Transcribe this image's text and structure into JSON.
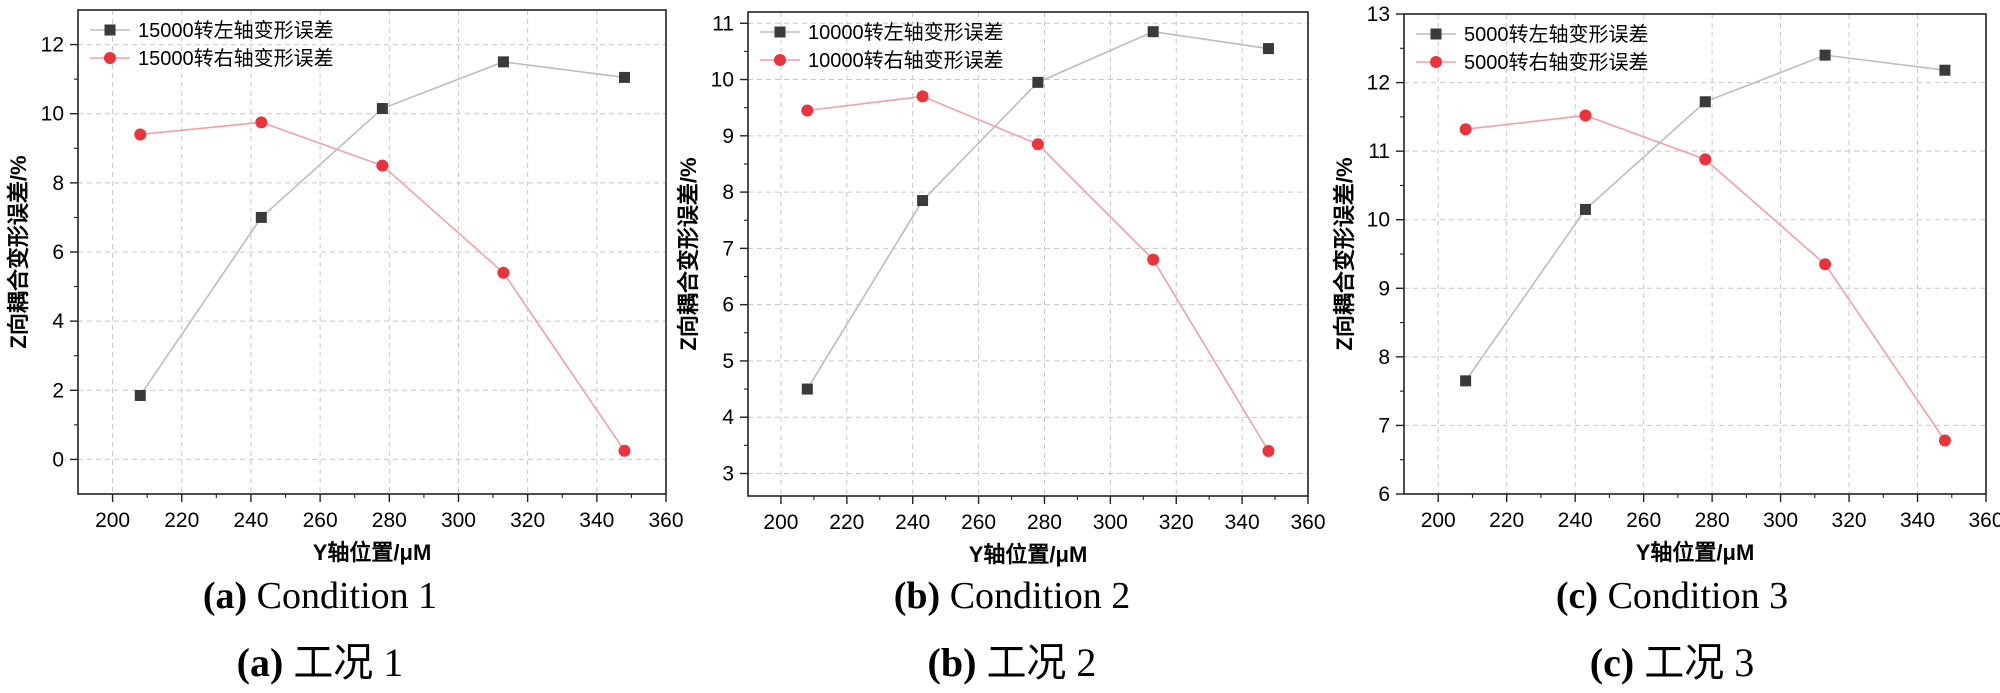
{
  "chart_data": [
    {
      "type": "line",
      "panel_letter": "(a)",
      "caption_en": "Condition 1",
      "caption_cn": "工况 1",
      "xlabel": "Y轴位置/μM",
      "ylabel": "Z向耦合变形误差/%",
      "xlim": [
        190,
        360
      ],
      "ylim": [
        -1,
        13
      ],
      "xticks": [
        200,
        220,
        240,
        260,
        280,
        300,
        320,
        340,
        360
      ],
      "yticks": [
        0,
        2,
        4,
        6,
        8,
        10,
        12
      ],
      "grid": true,
      "legend_position": "top-left",
      "series": [
        {
          "name": "15000转左轴变形误差",
          "marker": "square",
          "color": "#3a3a3a",
          "line_color": "#bdbdbd",
          "x": [
            208,
            243,
            278,
            313,
            348
          ],
          "y": [
            1.85,
            7.0,
            10.15,
            11.5,
            11.05
          ]
        },
        {
          "name": "15000转右轴变形误差",
          "marker": "circle",
          "color": "#e8343c",
          "line_color": "#f2a0a4",
          "x": [
            208,
            243,
            278,
            313,
            348
          ],
          "y": [
            9.4,
            9.75,
            8.5,
            5.4,
            0.25
          ]
        }
      ]
    },
    {
      "type": "line",
      "panel_letter": "(b)",
      "caption_en": "Condition 2",
      "caption_cn": "工况 2",
      "xlabel": "Y轴位置/μM",
      "ylabel": "Z向耦合变形误差/%",
      "xlim": [
        190,
        360
      ],
      "ylim": [
        2.6,
        11.2
      ],
      "xticks": [
        200,
        220,
        240,
        260,
        280,
        300,
        320,
        340,
        360
      ],
      "yticks": [
        3,
        4,
        5,
        6,
        7,
        8,
        9,
        10,
        11
      ],
      "grid": true,
      "legend_position": "top-left",
      "series": [
        {
          "name": "10000转左轴变形误差",
          "marker": "square",
          "color": "#3a3a3a",
          "line_color": "#bdbdbd",
          "x": [
            208,
            243,
            278,
            313,
            348
          ],
          "y": [
            4.5,
            7.85,
            9.95,
            10.85,
            10.55
          ]
        },
        {
          "name": "10000转右轴变形误差",
          "marker": "circle",
          "color": "#e8343c",
          "line_color": "#f2a0a4",
          "x": [
            208,
            243,
            278,
            313,
            348
          ],
          "y": [
            9.45,
            9.7,
            8.85,
            6.8,
            3.4
          ]
        }
      ]
    },
    {
      "type": "line",
      "panel_letter": "(c)",
      "caption_en": "Condition 3",
      "caption_cn": "工况 3",
      "xlabel": "Y轴位置/μM",
      "ylabel": "Z向耦合变形误差/%",
      "xlim": [
        190,
        360
      ],
      "ylim": [
        6,
        13
      ],
      "xticks": [
        200,
        220,
        240,
        260,
        280,
        300,
        320,
        340,
        360
      ],
      "yticks": [
        6,
        7,
        8,
        9,
        10,
        11,
        12,
        13
      ],
      "grid": true,
      "legend_position": "top-left",
      "series": [
        {
          "name": "5000转左轴变形误差",
          "marker": "square",
          "color": "#3a3a3a",
          "line_color": "#bdbdbd",
          "x": [
            208,
            243,
            278,
            313,
            348
          ],
          "y": [
            7.65,
            10.15,
            11.72,
            12.4,
            12.18
          ]
        },
        {
          "name": "5000转右轴变形误差",
          "marker": "circle",
          "color": "#e8343c",
          "line_color": "#f2a0a4",
          "x": [
            208,
            243,
            278,
            313,
            348
          ],
          "y": [
            11.32,
            11.52,
            10.88,
            9.35,
            6.78
          ]
        }
      ]
    }
  ]
}
